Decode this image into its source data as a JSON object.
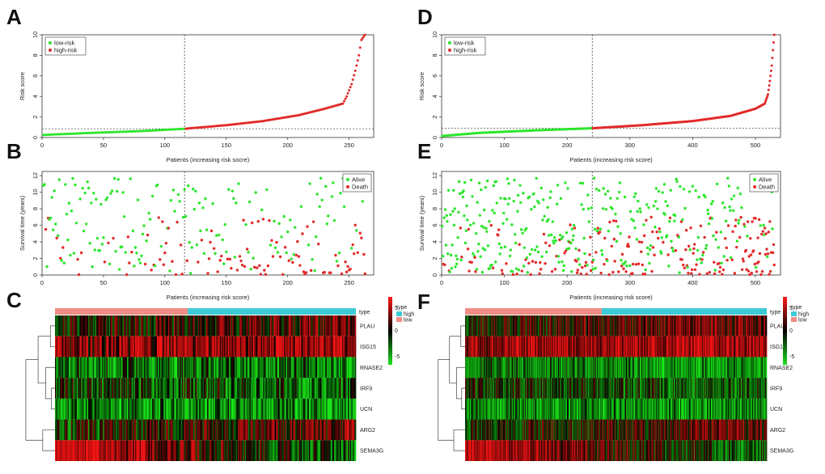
{
  "colors": {
    "low": "#2ee62e",
    "high": "#e32b2b",
    "alive": "#2ee62e",
    "death": "#e32b2b",
    "type_high": "#3ec9d6",
    "type_low": "#f08d84",
    "heat_high": "#ff1a1a",
    "heat_mid": "#000000",
    "heat_low": "#1fe01f"
  },
  "chart_data": [
    {
      "panel": "A",
      "type": "scatter",
      "kind": "riskscore",
      "xlabel": "Patients (increasing risk socre)",
      "ylabel": "Risk score",
      "xlim": [
        0,
        270
      ],
      "ylim": [
        0,
        10
      ],
      "xticks": [
        0,
        50,
        100,
        150,
        200,
        250
      ],
      "yticks": [
        0,
        2,
        4,
        6,
        8,
        10
      ],
      "n": 263,
      "cutoff_index": 116,
      "cutoff_score": 0.85,
      "legend": [
        "low-risk",
        "high-risk"
      ],
      "curve_knots": [
        [
          1,
          0.25
        ],
        [
          40,
          0.45
        ],
        [
          80,
          0.62
        ],
        [
          116,
          0.85
        ],
        [
          150,
          1.2
        ],
        [
          180,
          1.6
        ],
        [
          210,
          2.2
        ],
        [
          230,
          2.8
        ],
        [
          245,
          3.3
        ],
        [
          248,
          4.0
        ],
        [
          252,
          5.2
        ],
        [
          255,
          6.5
        ],
        [
          258,
          8.0
        ],
        [
          260,
          9.5
        ],
        [
          263,
          10.0
        ]
      ]
    },
    {
      "panel": "B",
      "type": "scatter",
      "kind": "survival",
      "xlabel": "Patients (increasing risk score)",
      "ylabel": "Survival time (years)",
      "xlim": [
        0,
        270
      ],
      "ylim": [
        0,
        12.5
      ],
      "xticks": [
        0,
        50,
        100,
        150,
        200,
        250
      ],
      "yticks": [
        0,
        2,
        4,
        6,
        8,
        10,
        12
      ],
      "n": 263,
      "cutoff_index": 116,
      "legend": [
        "Alive",
        "Death"
      ],
      "seed": 7
    },
    {
      "panel": "C",
      "type": "heatmap",
      "genes": [
        "PLAU",
        "ISG15",
        "RNASE2",
        "IRF9",
        "UCN",
        "ARG2",
        "SEMA3G"
      ],
      "gene_means": [
        0.4,
        1.2,
        -1.0,
        -0.6,
        -1.2,
        0.2,
        0.5
      ],
      "gene_trends": [
        0.4,
        0.3,
        -0.1,
        -0.2,
        0.0,
        0.6,
        -1.5
      ],
      "columns": 263,
      "low_count": 116,
      "type_legend_title": "type",
      "type_legend": [
        "high",
        "low"
      ],
      "scale_ticks": [
        "5",
        "0",
        "-5"
      ],
      "seed": 21
    },
    {
      "panel": "D",
      "type": "scatter",
      "kind": "riskscore",
      "xlabel": "Patients (increasing risk score)",
      "ylabel": "Risk score",
      "xlim": [
        0,
        540
      ],
      "ylim": [
        0,
        10
      ],
      "xticks": [
        0,
        100,
        200,
        300,
        400,
        500
      ],
      "yticks": [
        0,
        2,
        4,
        6,
        8,
        10
      ],
      "n": 530,
      "cutoff_index": 240,
      "cutoff_score": 0.9,
      "legend": [
        "low-risk",
        "high-risk"
      ],
      "curve_knots": [
        [
          1,
          0.15
        ],
        [
          60,
          0.45
        ],
        [
          150,
          0.7
        ],
        [
          240,
          0.9
        ],
        [
          320,
          1.2
        ],
        [
          400,
          1.6
        ],
        [
          460,
          2.1
        ],
        [
          500,
          2.8
        ],
        [
          515,
          3.3
        ],
        [
          520,
          4.2
        ],
        [
          523,
          5.5
        ],
        [
          526,
          7.0
        ],
        [
          528,
          8.5
        ],
        [
          530,
          10.0
        ]
      ]
    },
    {
      "panel": "E",
      "type": "scatter",
      "kind": "survival",
      "xlabel": "Patients (increasing risk score)",
      "ylabel": "Survival time (years)",
      "xlim": [
        0,
        540
      ],
      "ylim": [
        0,
        12.5
      ],
      "xticks": [
        0,
        100,
        200,
        300,
        400,
        500
      ],
      "yticks": [
        0,
        2,
        4,
        6,
        8,
        10,
        12
      ],
      "n": 530,
      "cutoff_index": 240,
      "legend": [
        "Alive",
        "Death"
      ],
      "seed": 13
    },
    {
      "panel": "F",
      "type": "heatmap",
      "genes": [
        "PLAU",
        "ISG15",
        "RNASE2",
        "IRF9",
        "UCN",
        "ARG2",
        "SEMA3G"
      ],
      "gene_means": [
        0.5,
        1.3,
        -1.1,
        -0.5,
        -1.2,
        0.3,
        0.4
      ],
      "gene_trends": [
        0.5,
        0.2,
        -0.2,
        -0.2,
        -0.1,
        0.6,
        -1.4
      ],
      "columns": 530,
      "low_count": 240,
      "type_legend_title": "type",
      "type_legend": [
        "high",
        "low"
      ],
      "scale_ticks": [
        "5",
        "0",
        "-5"
      ],
      "seed": 37
    }
  ]
}
